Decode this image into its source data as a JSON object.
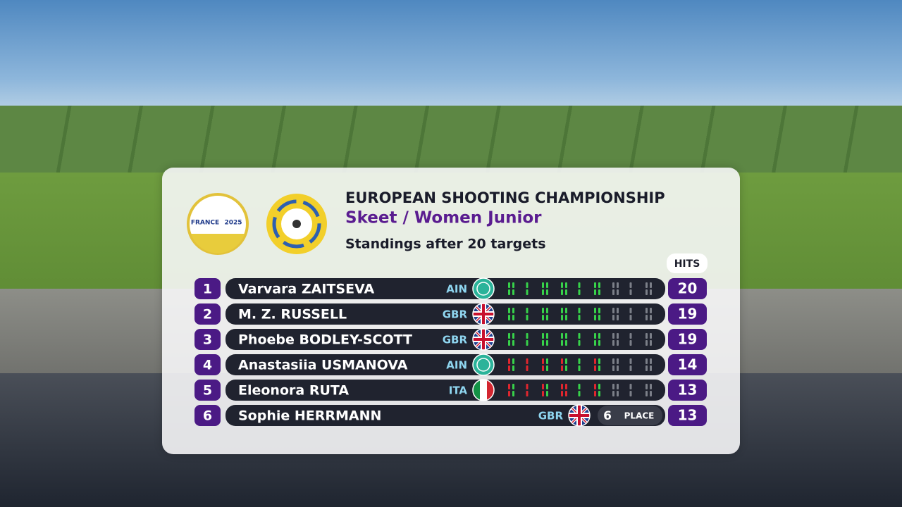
{
  "header": {
    "title": "EUROPEAN SHOOTING CHAMPIONSHIP",
    "subtitle": "Skeet / Women Junior",
    "status": "Standings after 20 targets",
    "hits_label": "HITS"
  },
  "logos": {
    "event_country": "FRANCE",
    "event_year": "2025"
  },
  "standings": [
    {
      "rank": 1,
      "name": "Varvara ZAITSEVA",
      "nation": "AIN",
      "hits": 20
    },
    {
      "rank": 2,
      "name": "M. Z. RUSSELL",
      "nation": "GBR",
      "hits": 19
    },
    {
      "rank": 3,
      "name": "Phoebe BODLEY-SCOTT",
      "nation": "GBR",
      "hits": 19
    },
    {
      "rank": 4,
      "name": "Anastasiia USMANOVA",
      "nation": "AIN",
      "hits": 14
    },
    {
      "rank": 5,
      "name": "Eleonora RUTA",
      "nation": "ITA",
      "hits": 13
    },
    {
      "rank": 6,
      "name": "Sophie HERRMANN",
      "nation": "GBR",
      "hits": 13,
      "place_badge": {
        "rank": 6,
        "label": "PLACE"
      }
    }
  ]
}
